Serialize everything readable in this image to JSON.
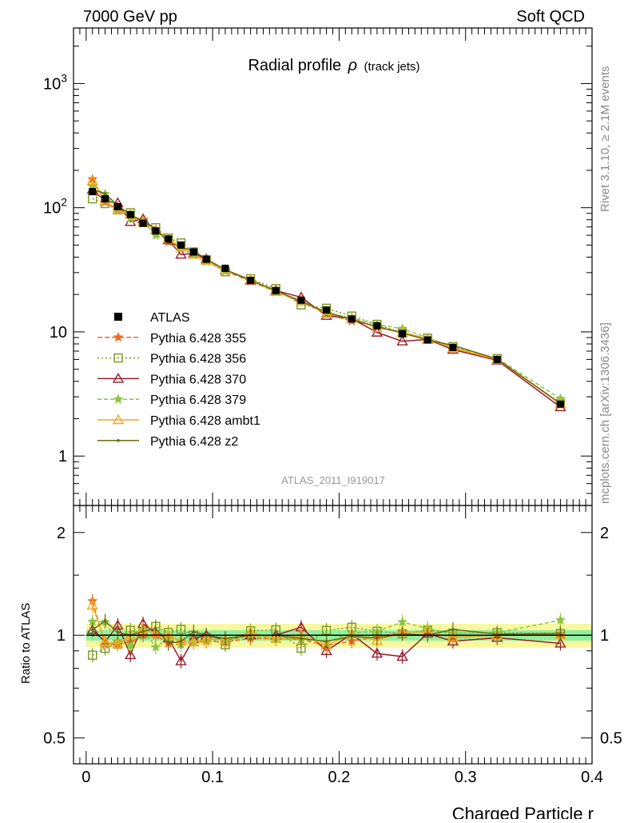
{
  "header": {
    "left": "7000 GeV pp",
    "right": "Soft QCD"
  },
  "side_labels": {
    "rivet": "Rivet 3.1.10, ≥ 2.1M events",
    "mcplots": "mcplots.cern.ch [arXiv:1306.3436]"
  },
  "chart_data": [
    {
      "type": "line",
      "title_main": "Radial profile",
      "title_rho": "ρ",
      "title_sub": "(track jets)",
      "analysis_label": "ATLAS_2011_I919017",
      "yscale": "log",
      "xlim": [
        -0.01,
        0.4
      ],
      "ylim": [
        0.4,
        2800
      ],
      "y_ticks": [
        {
          "value": 1,
          "label": "1"
        },
        {
          "value": 10,
          "label": "10"
        },
        {
          "value": 100,
          "label": "10",
          "sup": "2"
        },
        {
          "value": 1000,
          "label": "10",
          "sup": "3"
        }
      ],
      "x": [
        0.005,
        0.015,
        0.025,
        0.035,
        0.045,
        0.055,
        0.065,
        0.075,
        0.085,
        0.095,
        0.11,
        0.13,
        0.15,
        0.17,
        0.19,
        0.21,
        0.23,
        0.25,
        0.27,
        0.29,
        0.325,
        0.375
      ],
      "atlas": {
        "name": "ATLAS",
        "values": [
          135,
          118,
          102,
          88,
          75,
          65,
          56,
          50,
          44,
          38.5,
          32.5,
          26,
          21.5,
          18,
          15,
          12.7,
          11.2,
          9.7,
          8.6,
          7.5,
          6.0,
          2.62
        ]
      },
      "legend_position": "lower-left",
      "series": [
        {
          "name": "Pythia 6.428 355",
          "color": "#f26a21",
          "dash": "6,3",
          "marker": "star",
          "values": [
            170,
            111,
            96,
            84,
            75,
            65,
            53,
            48,
            42,
            37,
            31,
            25.5,
            21,
            17.5,
            14,
            12.2,
            11.1,
            9.9,
            8.8,
            7.4,
            6.0,
            2.65
          ]
        },
        {
          "name": "Pythia 6.428 356",
          "color": "#7a9a1e",
          "dash": "2,3",
          "marker": "open-square",
          "values": [
            118,
            108,
            96,
            91,
            76,
            69,
            57,
            52,
            44,
            38,
            30.5,
            26.8,
            22.3,
            16.5,
            15.5,
            13.4,
            11.5,
            9.8,
            8.9,
            7.6,
            6.1,
            2.65
          ]
        },
        {
          "name": "Pythia 6.428 370",
          "color": "#9b1c2a",
          "dash": "",
          "marker": "open-triangle",
          "values": [
            140,
            113,
            109,
            77,
            81,
            66,
            55,
            42,
            43,
            38.5,
            31.5,
            26,
            21.5,
            19,
            13.5,
            12.8,
            9.9,
            8.4,
            8.7,
            7.2,
            5.9,
            2.48
          ]
        },
        {
          "name": "Pythia 6.428 379",
          "color": "#8ec63f",
          "dash": "5,3",
          "marker": "star",
          "values": [
            148,
            129,
            98,
            82,
            78,
            60,
            55,
            47,
            42,
            37.5,
            31.5,
            26,
            21,
            17.6,
            14.3,
            12.9,
            11.5,
            10.6,
            9.0,
            7.6,
            6.1,
            2.9
          ]
        },
        {
          "name": "Pythia 6.428 ambt1",
          "color": "#f4a81d",
          "dash": "",
          "marker": "open-triangle",
          "values": [
            165,
            113,
            96,
            88,
            78,
            66,
            56,
            48,
            42,
            37.5,
            31.5,
            26.5,
            21,
            18,
            14,
            12.8,
            10.8,
            9.9,
            8.8,
            7.4,
            6.0,
            2.63
          ]
        },
        {
          "name": "Pythia 6.428 z2",
          "color": "#6b6d12",
          "dash": "",
          "marker": "dot",
          "values": [
            140,
            130,
            104,
            88,
            77,
            68,
            53,
            48,
            45,
            38.5,
            31.8,
            26,
            21.5,
            17.6,
            14.4,
            12.6,
            11.0,
            9.8,
            8.6,
            7.8,
            6.05,
            2.65
          ]
        }
      ]
    },
    {
      "type": "line",
      "ylabel": "Ratio to ATLAS",
      "xlabel": "Charged Particle r",
      "yscale": "log",
      "xlim": [
        -0.01,
        0.4
      ],
      "ylim": [
        0.42,
        2.4
      ],
      "y_ticks": [
        {
          "value": 0.5,
          "label": "0.5"
        },
        {
          "value": 1,
          "label": "1"
        },
        {
          "value": 2,
          "label": "2"
        }
      ],
      "x_ticks": [
        {
          "value": 0,
          "label": "0"
        },
        {
          "value": 0.1,
          "label": "0.1"
        },
        {
          "value": 0.2,
          "label": "0.2"
        },
        {
          "value": 0.3,
          "label": "0.3"
        },
        {
          "value": 0.4,
          "label": "0.4"
        }
      ],
      "reference_line": 1,
      "bands": {
        "inner_color": "#90f0a0",
        "outer_color": "#f8f8a0",
        "inner_halfwidth": 0.035,
        "outer_halfwidth": 0.08
      }
    }
  ]
}
